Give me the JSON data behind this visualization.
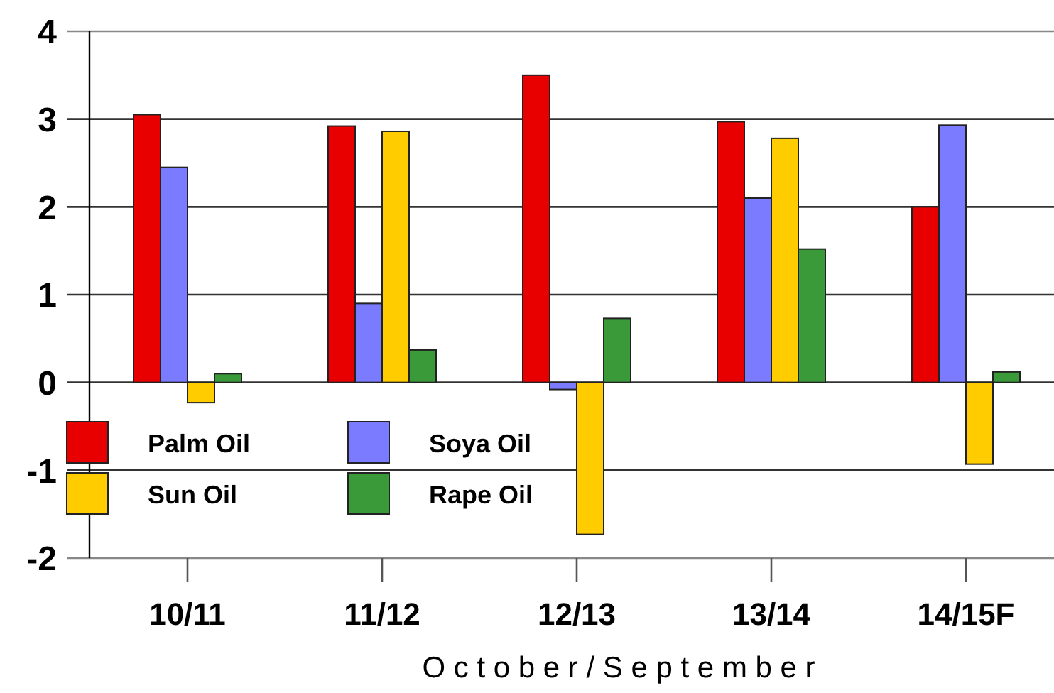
{
  "chart_data": {
    "type": "bar",
    "xlabel": "O c t o b e r / S e p t e m b e r",
    "categories": [
      "10/11",
      "11/12",
      "12/13",
      "13/14",
      "14/15F"
    ],
    "series": [
      {
        "name": "Palm Oil",
        "color": "#e80000",
        "values": [
          3.05,
          2.92,
          3.5,
          2.97,
          2.0
        ]
      },
      {
        "name": "Soya Oil",
        "color": "#7b7bff",
        "values": [
          2.45,
          0.9,
          -0.08,
          2.1,
          2.93
        ]
      },
      {
        "name": "Sun Oil",
        "color": "#ffcc00",
        "values": [
          -0.23,
          2.86,
          -1.73,
          2.78,
          -0.93
        ]
      },
      {
        "name": "Rape Oil",
        "color": "#3a9a3a",
        "values": [
          0.1,
          0.37,
          0.73,
          1.52,
          0.12
        ]
      }
    ],
    "ylim": [
      -2,
      4
    ],
    "yticks": [
      -2,
      -1,
      0,
      1,
      2,
      3,
      4
    ],
    "grid": "y",
    "legend": "bottom left"
  }
}
